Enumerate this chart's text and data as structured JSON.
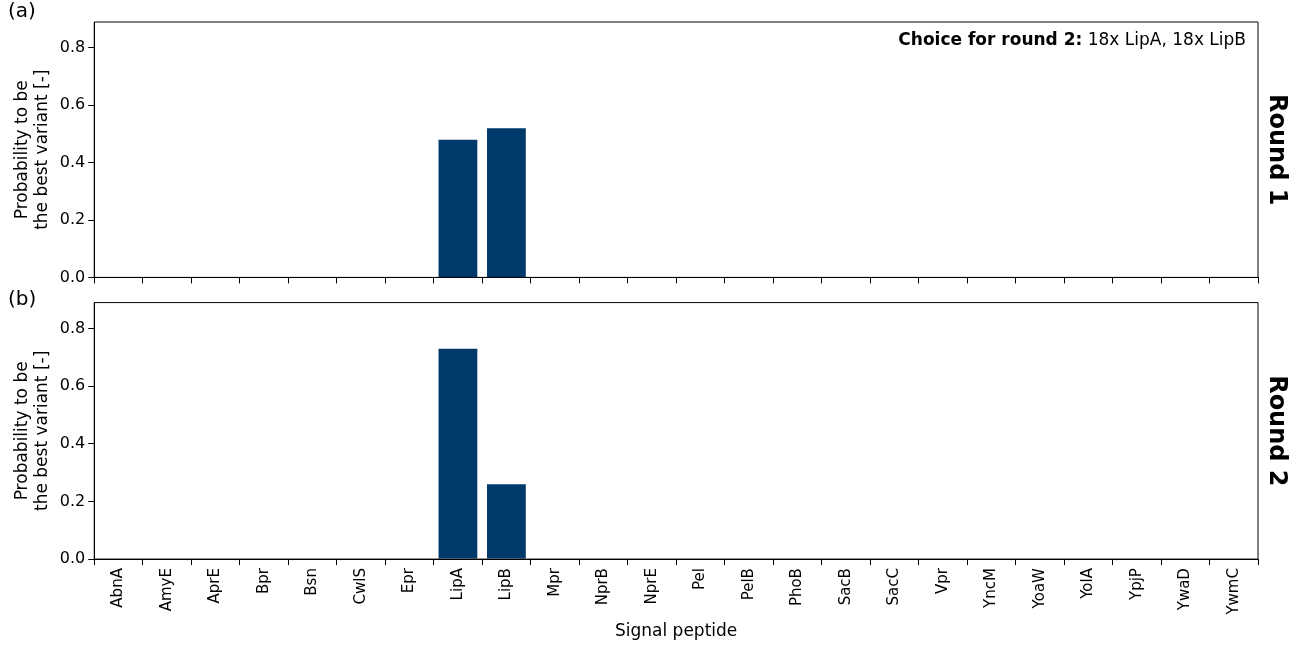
{
  "chart_data": [
    {
      "type": "bar",
      "categories": [
        null,
        null,
        null,
        null,
        null,
        null,
        null,
        null,
        null,
        null,
        null,
        null,
        null,
        null,
        null,
        null,
        null,
        null,
        null,
        null,
        null,
        null,
        null,
        null
      ],
      "values": [
        0,
        0,
        0,
        0,
        0,
        0,
        0,
        0.48,
        0.52,
        0,
        0,
        0,
        0,
        0,
        0,
        0,
        0,
        0,
        0,
        0,
        0,
        0,
        0,
        0
      ],
      "color": "#003a6b",
      "ylabel": "Probability to be\nthe best variant [-]",
      "y2label": "Round 1",
      "ylim": [
        0,
        0.89
      ],
      "yticks": [
        {
          "value": 0,
          "label": "0.0"
        },
        {
          "value": 0.2,
          "label": "0.2"
        },
        {
          "value": 0.4,
          "label": "0.4"
        },
        {
          "value": 0.6,
          "label": "0.6"
        },
        {
          "value": 0.8,
          "label": "0.8"
        }
      ],
      "tick_labels": "y",
      "grid": false,
      "legend": false,
      "annotations": [
        "(a)",
        "Choice for round 2: 18x LipA, 18x LipB"
      ]
    },
    {
      "type": "bar",
      "categories": [
        "AbnA",
        "AmyE",
        "AprE",
        "Bpr",
        "Bsn",
        "CwlS",
        "Epr",
        "LipA",
        "LipB",
        "Mpr",
        "NprB",
        "NprE",
        "Pel",
        "PelB",
        "PhoB",
        "SacB",
        "SacC",
        "Vpr",
        "YncM",
        "YoaW",
        "YolA",
        "YpjP",
        "YwaD",
        "YwmC"
      ],
      "values": [
        0,
        0,
        0,
        0,
        0,
        0,
        0,
        0.73,
        0.26,
        0,
        0,
        0,
        0,
        0,
        0,
        0,
        0,
        0,
        0,
        0,
        0,
        0,
        0,
        0
      ],
      "color": "#003a6b",
      "xlabel": "Signal peptide",
      "ylabel": "Probability to be\nthe best variant [-]",
      "y2label": "Round 2",
      "ylim": [
        0,
        0.89
      ],
      "yticks": [
        {
          "value": 0,
          "label": "0.0"
        },
        {
          "value": 0.2,
          "label": "0.2"
        },
        {
          "value": 0.4,
          "label": "0.4"
        },
        {
          "value": 0.6,
          "label": "0.6"
        },
        {
          "value": 0.8,
          "label": "0.8"
        }
      ],
      "grid": false,
      "legend": false,
      "annotations": [
        "(b)"
      ]
    }
  ]
}
